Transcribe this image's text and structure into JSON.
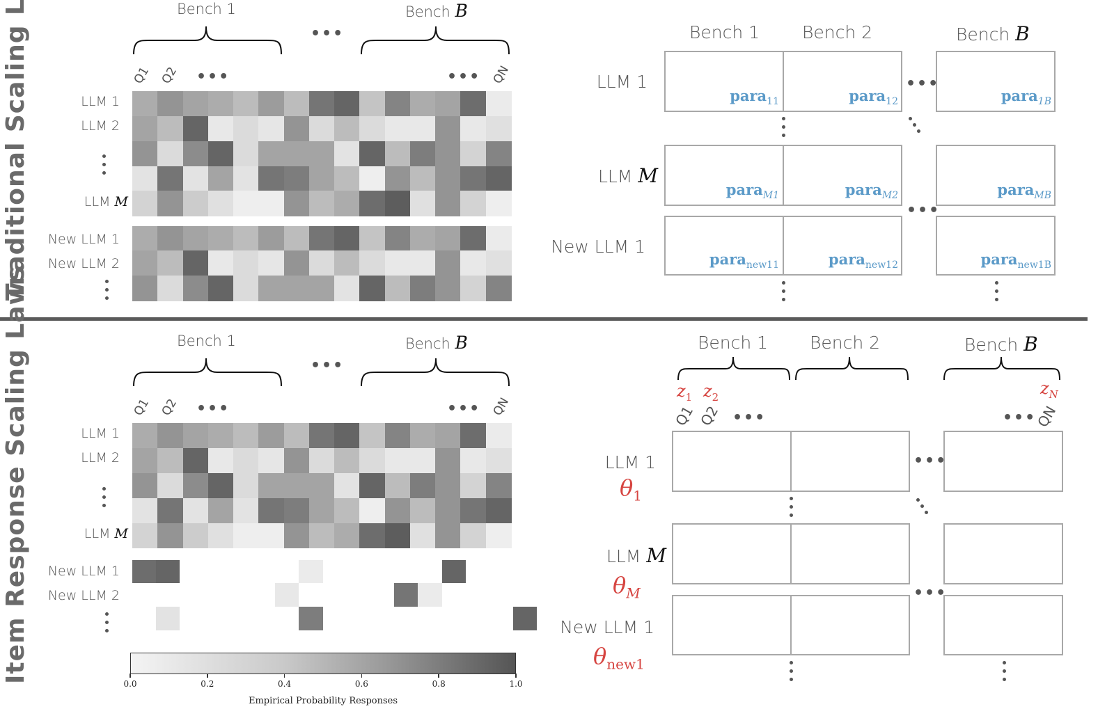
{
  "panels": {
    "top": {
      "title": "Traditional Scaling Laws",
      "heatmap": {
        "bench_first": "Bench 1",
        "bench_last_prefix": "Bench ",
        "bench_last_var": "B",
        "q_first": "Q1",
        "q_second": "Q2",
        "q_last": "QN",
        "ellipsis": "•••",
        "row_labels": [
          "LLM 1",
          "LLM 2",
          "",
          "",
          "LLM "
        ],
        "row_label_last_var": "M",
        "new_row_labels": [
          "New LLM 1",
          "New LLM 2",
          ""
        ],
        "values": [
          [
            0.45,
            0.6,
            0.5,
            0.45,
            0.35,
            0.55,
            0.35,
            0.8,
            0.9,
            0.3,
            0.7,
            0.45,
            0.5,
            0.85,
            0.05
          ],
          [
            0.5,
            0.35,
            0.9,
            0.07,
            0.15,
            0.08,
            0.6,
            0.15,
            0.35,
            0.15,
            0.07,
            0.07,
            0.6,
            0.07,
            0.12
          ],
          [
            0.6,
            0.15,
            0.65,
            0.9,
            0.15,
            0.5,
            0.5,
            0.5,
            0.1,
            0.9,
            0.35,
            0.75,
            0.6,
            0.2,
            0.7
          ],
          [
            0.1,
            0.8,
            0.1,
            0.5,
            0.1,
            0.8,
            0.75,
            0.5,
            0.35,
            0.03,
            0.6,
            0.35,
            0.6,
            0.8,
            0.9
          ],
          [
            0.2,
            0.6,
            0.25,
            0.12,
            0.03,
            0.03,
            0.6,
            0.35,
            0.45,
            0.85,
            0.95,
            0.12,
            0.6,
            0.2,
            0.03
          ]
        ],
        "new_values": [
          [
            0.45,
            0.6,
            0.5,
            0.45,
            0.35,
            0.55,
            0.35,
            0.8,
            0.9,
            0.3,
            0.7,
            0.45,
            0.5,
            0.85,
            0.05
          ],
          [
            0.5,
            0.35,
            0.9,
            0.07,
            0.15,
            0.08,
            0.6,
            0.15,
            0.35,
            0.15,
            0.07,
            0.07,
            0.6,
            0.07,
            0.12
          ],
          [
            0.6,
            0.15,
            0.65,
            0.9,
            0.15,
            0.5,
            0.5,
            0.5,
            0.1,
            0.9,
            0.35,
            0.75,
            0.6,
            0.2,
            0.7
          ]
        ]
      },
      "grid": {
        "bench_headers": [
          "Bench 1",
          "Bench 2"
        ],
        "bench_last_prefix": "Bench ",
        "bench_last_var": "B",
        "row_labels": [
          "LLM 1",
          "LLM "
        ],
        "row_label_var": "M",
        "new_row_label": "New LLM 1",
        "param_base": "para",
        "params": [
          [
            "11",
            "12",
            "1B"
          ],
          [
            "M1",
            "M2",
            "MB"
          ],
          [
            "new11",
            "new12",
            "new1B"
          ]
        ],
        "curve_shapes": [
          [
            "convex",
            "double-sigmoid",
            "sigmoid"
          ],
          [
            "convex",
            "double-sigmoid",
            "sigmoid"
          ],
          [
            "double-sigmoid",
            "sigmoid",
            "convex"
          ]
        ],
        "curve_color": "#5b9ac8"
      }
    },
    "bottom": {
      "title": "Item Response  Scaling Laws",
      "heatmap": {
        "bench_first": "Bench 1",
        "bench_last_prefix": "Bench ",
        "bench_last_var": "B",
        "q_first": "Q1",
        "q_second": "Q2",
        "q_last": "QN",
        "ellipsis": "•••",
        "row_labels": [
          "LLM 1",
          "LLM 2",
          "",
          "",
          "LLM "
        ],
        "row_label_last_var": "M",
        "new_row_labels": [
          "New LLM 1",
          "New LLM 2",
          ""
        ],
        "values": [
          [
            0.45,
            0.6,
            0.5,
            0.45,
            0.35,
            0.55,
            0.35,
            0.8,
            0.9,
            0.3,
            0.7,
            0.45,
            0.5,
            0.85,
            0.05
          ],
          [
            0.5,
            0.35,
            0.9,
            0.07,
            0.15,
            0.08,
            0.6,
            0.15,
            0.35,
            0.15,
            0.07,
            0.07,
            0.6,
            0.07,
            0.12
          ],
          [
            0.6,
            0.15,
            0.65,
            0.9,
            0.15,
            0.5,
            0.5,
            0.5,
            0.1,
            0.9,
            0.35,
            0.75,
            0.6,
            0.2,
            0.7
          ],
          [
            0.1,
            0.8,
            0.1,
            0.5,
            0.1,
            0.8,
            0.75,
            0.5,
            0.35,
            0.03,
            0.6,
            0.35,
            0.6,
            0.8,
            0.9
          ],
          [
            0.2,
            0.6,
            0.25,
            0.12,
            0.03,
            0.03,
            0.6,
            0.35,
            0.45,
            0.85,
            0.95,
            0.12,
            0.6,
            0.2,
            0.03
          ]
        ],
        "sparse_new_cells": [
          {
            "row": 0,
            "col": 0,
            "value": 0.85
          },
          {
            "row": 0,
            "col": 1,
            "value": 0.9
          },
          {
            "row": 0,
            "col": 7,
            "value": 0.05
          },
          {
            "row": 0,
            "col": 13,
            "value": 0.9
          },
          {
            "row": 1,
            "col": 6,
            "value": 0.07
          },
          {
            "row": 1,
            "col": 11,
            "value": 0.8
          },
          {
            "row": 1,
            "col": 12,
            "value": 0.05
          },
          {
            "row": 2,
            "col": 1,
            "value": 0.1
          },
          {
            "row": 2,
            "col": 7,
            "value": 0.75
          },
          {
            "row": 2,
            "col": 16,
            "value": 0.9
          }
        ],
        "colorbar": {
          "ticks": [
            "0.0",
            "0.2",
            "0.4",
            "0.6",
            "0.8",
            "1.0"
          ],
          "range": [
            0.0,
            1.0
          ],
          "label": "Empirical Probability Responses"
        }
      },
      "grid": {
        "bench_headers": [
          "Bench 1",
          "Bench 2"
        ],
        "bench_last_prefix": "Bench ",
        "bench_last_var": "B",
        "z_labels": [
          {
            "base": "z",
            "sub": "1"
          },
          {
            "base": "z",
            "sub": "2"
          },
          {
            "base": "z",
            "sub": "N"
          }
        ],
        "q_first": "Q1",
        "q_second": "Q2",
        "q_last": "QN",
        "ellipsis": "•••",
        "row_labels": [
          "LLM 1",
          "LLM "
        ],
        "row_label_var": "M",
        "new_row_label": "New LLM 1",
        "thetas": [
          {
            "base": "θ",
            "sub": "1"
          },
          {
            "base": "θ",
            "sub": "M"
          },
          {
            "base": "θ",
            "sub": "new1"
          }
        ],
        "curve_shapes": [
          [
            "convex",
            "double-sigmoid",
            "sigmoid"
          ],
          [
            "convex",
            "double-sigmoid",
            "sigmoid"
          ],
          [
            "double-sigmoid",
            "sigmoid",
            "convex"
          ]
        ],
        "curve_color": "#d64541"
      }
    }
  },
  "colors": {
    "heat_light": "#f3f3f3",
    "heat_dark": "#555555",
    "box_border": "#a8a8a8",
    "separator": "#5a5a5a",
    "param_blue": "#5b9ac8",
    "theta_red": "#d64541"
  }
}
